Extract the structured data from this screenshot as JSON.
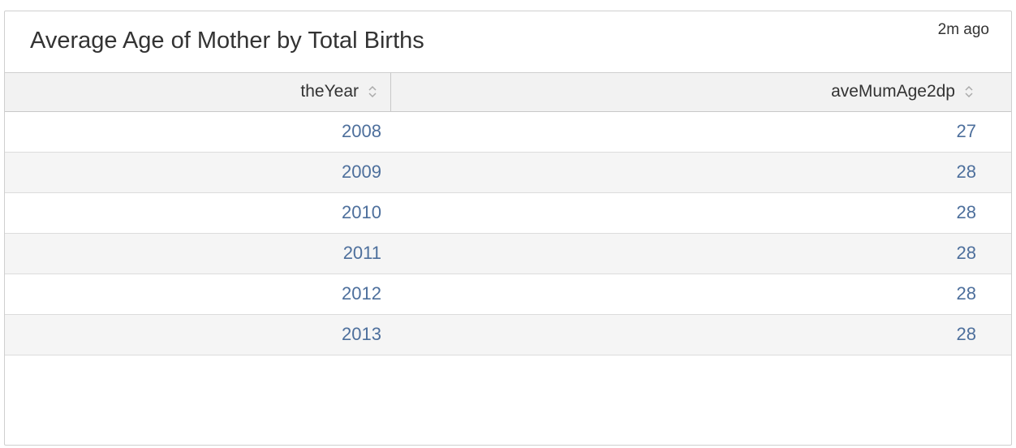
{
  "panel": {
    "title": "Average Age of Mother by Total Births",
    "timestamp": "2m ago"
  },
  "table": {
    "columns": [
      "theYear",
      "aveMumAge2dp"
    ],
    "rows": [
      [
        2008,
        27
      ],
      [
        2009,
        28
      ],
      [
        2010,
        28
      ],
      [
        2011,
        28
      ],
      [
        2012,
        28
      ],
      [
        2013,
        28
      ]
    ]
  }
}
